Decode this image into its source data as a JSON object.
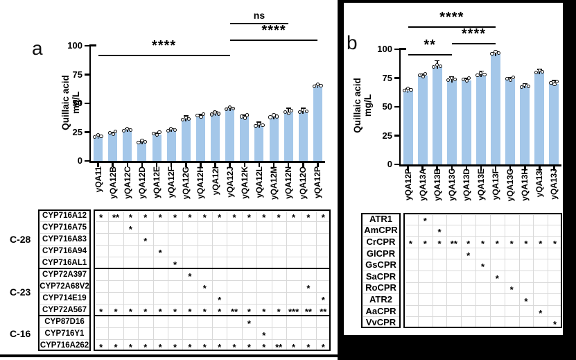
{
  "figure": {
    "panels": [
      {
        "label": "a",
        "ylabel": [
          "Quillaic acid",
          "mg/L"
        ]
      },
      {
        "label": "b",
        "ylabel": [
          "Quillaic acid",
          "mg/L"
        ]
      }
    ],
    "colors": {
      "bar_fill": "#A4C7E9",
      "axis": "#000000",
      "table_grid": "#D9D9D9",
      "panel_b_frame": "#000000"
    }
  },
  "chart_data": [
    {
      "id": "a",
      "type": "bar",
      "title": "",
      "xlabel": "",
      "ylabel": "Quillaic acid mg/L",
      "ylim": [
        0,
        100
      ],
      "yticks": [
        0,
        25,
        50,
        75,
        100
      ],
      "grid": false,
      "legend": "none",
      "categories": [
        "yQA11",
        "yQA12B",
        "yQA12C",
        "yQA12D",
        "yQA12E",
        "yQA12F",
        "yQA12G",
        "yQA12H",
        "yQA12I",
        "yQA12J",
        "yQA12K",
        "yQA12L",
        "yQA12M",
        "yQA12N",
        "yQA12O",
        "yQA12P"
      ],
      "values": [
        21,
        24,
        27,
        16,
        23,
        27,
        36,
        39,
        41,
        45,
        38,
        31,
        38,
        42,
        43,
        65
      ],
      "errors": [
        1.5,
        1,
        1,
        1,
        1,
        1,
        3,
        1.5,
        2,
        1,
        1.5,
        2.5,
        1.5,
        3.5,
        2.5,
        1.5
      ],
      "replicates_per_bar": 3,
      "point_color_overrides": {
        "yQA12I": "#c9c9c9",
        "yQA12J": "#d6d6d6"
      },
      "significance": [
        {
          "from": "yQA11",
          "to": "yQA12J",
          "label": "****"
        },
        {
          "from": "yQA12J",
          "to": "yQA12N",
          "label": "ns"
        },
        {
          "from": "yQA12J",
          "to": "yQA12P",
          "label": "****"
        }
      ],
      "annotation_table": {
        "groups": [
          {
            "label": "C-28",
            "span": 5
          },
          {
            "label": "C-23",
            "span": 4
          },
          {
            "label": "C-16",
            "span": 3
          }
        ],
        "rows": [
          {
            "name": "CYP716A12",
            "marks": [
              "*",
              "**",
              "*",
              "*",
              "*",
              "*",
              "*",
              "*",
              "*",
              "*",
              "*",
              "*",
              "*",
              "*",
              "*",
              "*"
            ]
          },
          {
            "name": "CYP716A75",
            "marks": [
              "",
              "",
              "*",
              "",
              "",
              "",
              "",
              "",
              "",
              "",
              "",
              "",
              "",
              "",
              "",
              ""
            ]
          },
          {
            "name": "CYP716A83",
            "marks": [
              "",
              "",
              "",
              "*",
              "",
              "",
              "",
              "",
              "",
              "",
              "",
              "",
              "",
              "",
              "",
              ""
            ]
          },
          {
            "name": "CYP716A94",
            "marks": [
              "",
              "",
              "",
              "",
              "*",
              "",
              "",
              "",
              "",
              "",
              "",
              "",
              "",
              "",
              "",
              ""
            ]
          },
          {
            "name": "CYP716AL1",
            "marks": [
              "",
              "",
              "",
              "",
              "",
              "*",
              "",
              "",
              "",
              "",
              "",
              "",
              "",
              "",
              "",
              ""
            ]
          },
          {
            "name": "CYP72A397",
            "marks": [
              "",
              "",
              "",
              "",
              "",
              "",
              "*",
              "",
              "",
              "",
              "",
              "",
              "",
              "",
              "",
              ""
            ]
          },
          {
            "name": "CYP72A68V2",
            "marks": [
              "",
              "",
              "",
              "",
              "",
              "",
              "",
              "*",
              "",
              "",
              "",
              "",
              "",
              "",
              "*",
              ""
            ]
          },
          {
            "name": "CYP714E19",
            "marks": [
              "",
              "",
              "",
              "",
              "",
              "",
              "",
              "",
              "*",
              "",
              "",
              "",
              "",
              "",
              "",
              "*"
            ]
          },
          {
            "name": "CYP72A567",
            "marks": [
              "*",
              "*",
              "*",
              "*",
              "*",
              "*",
              "*",
              "*",
              "*",
              "**",
              "*",
              "*",
              "*",
              "***",
              "**",
              "**"
            ]
          },
          {
            "name": "CYP87D16",
            "marks": [
              "",
              "",
              "",
              "",
              "",
              "",
              "",
              "",
              "",
              "",
              "*",
              "",
              "",
              "",
              "",
              ""
            ]
          },
          {
            "name": "CYP716Y1",
            "marks": [
              "",
              "",
              "",
              "",
              "",
              "",
              "",
              "",
              "",
              "",
              "",
              "*",
              "",
              "",
              "",
              ""
            ]
          },
          {
            "name": "CYP716A262",
            "marks": [
              "*",
              "*",
              "*",
              "*",
              "*",
              "*",
              "*",
              "*",
              "*",
              "*",
              "*",
              "*",
              "**",
              "*",
              "*",
              "*"
            ]
          }
        ]
      }
    },
    {
      "id": "b",
      "type": "bar",
      "title": "",
      "xlabel": "",
      "ylabel": "Quillaic acid mg/L",
      "ylim": [
        0,
        100
      ],
      "yticks": [
        0,
        25,
        50,
        75,
        100
      ],
      "grid": false,
      "legend": "none",
      "categories": [
        "yQA12P",
        "yQA13A",
        "yQA13B",
        "yQA13C",
        "yQA13D",
        "yQA13E",
        "yQA13F",
        "yQA13G",
        "yQA13H",
        "yQA13I",
        "yQA13J"
      ],
      "values": [
        64,
        77,
        85,
        73,
        73,
        78,
        96,
        74,
        68,
        80,
        70
      ],
      "errors": [
        1.5,
        1.5,
        5,
        3,
        1.5,
        3,
        1.5,
        1.5,
        2,
        2.5,
        3
      ],
      "replicates_per_bar": 3,
      "point_color_overrides": {},
      "significance": [
        {
          "from": "yQA12P",
          "to": "yQA13F",
          "label": "****"
        },
        {
          "from": "yQA13C",
          "to": "yQA13F",
          "label": "****"
        },
        {
          "from": "yQA12P",
          "to": "yQA13C",
          "label": "**"
        }
      ],
      "annotation_table": {
        "groups": [],
        "rows": [
          {
            "name": "ATR1",
            "marks": [
              "",
              "*",
              "",
              "",
              "",
              "",
              "",
              "",
              "",
              "",
              ""
            ]
          },
          {
            "name": "AmCPR",
            "marks": [
              "",
              "",
              "*",
              "",
              "",
              "",
              "",
              "",
              "",
              "",
              ""
            ]
          },
          {
            "name": "CrCPR",
            "marks": [
              "*",
              "*",
              "*",
              "**",
              "*",
              "*",
              "*",
              "*",
              "*",
              "*",
              "*"
            ]
          },
          {
            "name": "GlCPR",
            "marks": [
              "",
              "",
              "",
              "",
              "*",
              "",
              "",
              "",
              "",
              "",
              ""
            ]
          },
          {
            "name": "GsCPR",
            "marks": [
              "",
              "",
              "",
              "",
              "",
              "*",
              "",
              "",
              "",
              "",
              ""
            ]
          },
          {
            "name": "SaCPR",
            "marks": [
              "",
              "",
              "",
              "",
              "",
              "",
              "*",
              "",
              "",
              "",
              ""
            ]
          },
          {
            "name": "RoCPR",
            "marks": [
              "",
              "",
              "",
              "",
              "",
              "",
              "",
              "*",
              "",
              "",
              ""
            ]
          },
          {
            "name": "ATR2",
            "marks": [
              "",
              "",
              "",
              "",
              "",
              "",
              "",
              "",
              "*",
              "",
              ""
            ]
          },
          {
            "name": "AaCPR",
            "marks": [
              "",
              "",
              "",
              "",
              "",
              "",
              "",
              "",
              "",
              "*",
              ""
            ]
          },
          {
            "name": "VvCPR",
            "marks": [
              "",
              "",
              "",
              "",
              "",
              "",
              "",
              "",
              "",
              "",
              "*"
            ]
          }
        ]
      }
    }
  ]
}
